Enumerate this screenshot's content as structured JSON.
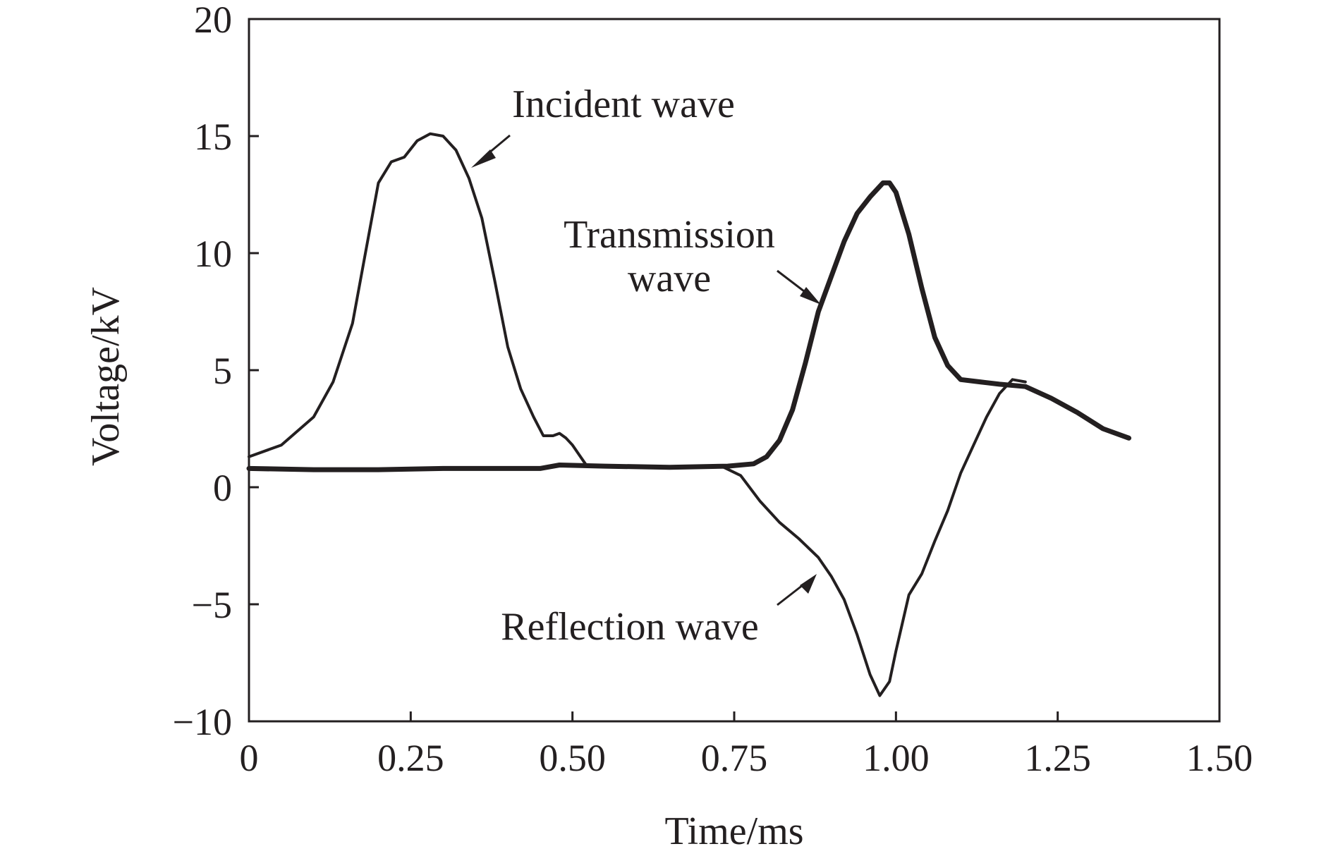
{
  "chart_data": {
    "type": "line",
    "title": "",
    "xlabel": "Time/ms",
    "ylabel": "Voltage/kV",
    "xlim": [
      0,
      1.5
    ],
    "ylim": [
      -10,
      20
    ],
    "grid": false,
    "xticks": [
      0,
      0.25,
      0.5,
      0.75,
      1.0,
      1.25,
      1.5
    ],
    "xtick_labels": [
      "0",
      "0.25",
      "0.50",
      "0.75",
      "1.00",
      "1.25",
      "1.50"
    ],
    "yticks": [
      -10,
      -5,
      0,
      5,
      10,
      15,
      20
    ],
    "ytick_labels": [
      "−10",
      "−5",
      "0",
      "5",
      "10",
      "15",
      "20"
    ],
    "series": [
      {
        "name": "Incident wave",
        "x": [
          0,
          0.05,
          0.1,
          0.13,
          0.16,
          0.18,
          0.2,
          0.22,
          0.24,
          0.26,
          0.28,
          0.3,
          0.32,
          0.34,
          0.36,
          0.38,
          0.4,
          0.42,
          0.44,
          0.455,
          0.47,
          0.48,
          0.49,
          0.5,
          0.51,
          0.52
        ],
        "y": [
          1.3,
          1.8,
          3.0,
          4.5,
          7.0,
          10.0,
          13.0,
          13.9,
          14.1,
          14.8,
          15.1,
          15.0,
          14.4,
          13.2,
          11.5,
          8.8,
          6.0,
          4.2,
          3.0,
          2.2,
          2.2,
          2.3,
          2.1,
          1.8,
          1.4,
          1.0
        ]
      },
      {
        "name": "Transmission wave",
        "x": [
          0,
          0.1,
          0.2,
          0.3,
          0.45,
          0.48,
          0.55,
          0.65,
          0.74,
          0.78,
          0.8,
          0.82,
          0.84,
          0.86,
          0.88,
          0.9,
          0.92,
          0.94,
          0.96,
          0.98,
          0.99,
          1.0,
          1.02,
          1.04,
          1.06,
          1.08,
          1.1,
          1.13,
          1.16,
          1.2,
          1.24,
          1.28,
          1.32,
          1.36
        ],
        "y": [
          0.8,
          0.75,
          0.75,
          0.8,
          0.8,
          0.95,
          0.9,
          0.85,
          0.9,
          1.0,
          1.3,
          2.0,
          3.3,
          5.3,
          7.5,
          9.0,
          10.5,
          11.7,
          12.4,
          13.0,
          13.0,
          12.6,
          10.8,
          8.5,
          6.4,
          5.2,
          4.6,
          4.5,
          4.4,
          4.3,
          3.8,
          3.2,
          2.5,
          2.1
        ]
      },
      {
        "name": "Reflection wave",
        "x": [
          0.73,
          0.76,
          0.79,
          0.82,
          0.85,
          0.88,
          0.9,
          0.92,
          0.94,
          0.96,
          0.975,
          0.99,
          1.0,
          1.02,
          1.04,
          1.06,
          1.08,
          1.1,
          1.12,
          1.14,
          1.16,
          1.18,
          1.2
        ],
        "y": [
          0.9,
          0.5,
          -0.6,
          -1.5,
          -2.2,
          -3.0,
          -3.8,
          -4.8,
          -6.3,
          -8.0,
          -8.9,
          -8.3,
          -7.0,
          -4.6,
          -3.7,
          -2.3,
          -1.0,
          0.6,
          1.8,
          3.0,
          4.0,
          4.6,
          4.5
        ]
      }
    ],
    "annotations": [
      {
        "text": "Incident wave"
      },
      {
        "lines": [
          "Transmission",
          "wave"
        ]
      },
      {
        "text": "Reflection wave"
      }
    ]
  }
}
